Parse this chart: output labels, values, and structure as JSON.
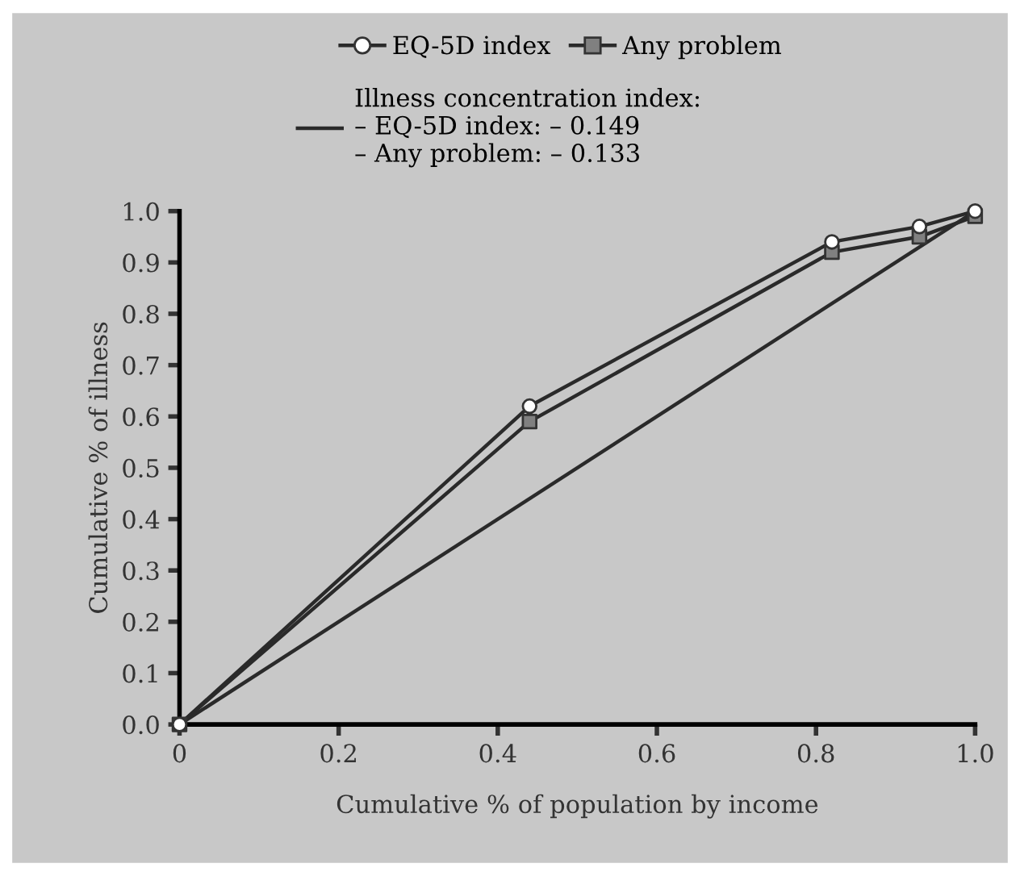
{
  "chart_data": {
    "type": "line",
    "xlabel": "Cumulative % of population by income",
    "ylabel": "Cumulative % of illness",
    "series": [
      {
        "name": "EQ-5D index",
        "color": "#2a2a2a",
        "marker": "circle",
        "colors": [
          "#ffffff",
          "#ffffff",
          "#ffffff",
          "#ffffff",
          "#ffffff"
        ],
        "x": [
          0,
          0.44,
          0.82,
          0.93,
          1.0
        ],
        "values": [
          0,
          0.62,
          0.94,
          0.97,
          1.0
        ]
      },
      {
        "name": "Any problem",
        "color": "#2a2a2a",
        "marker": "square",
        "colors": [
          "#808080",
          "#808080",
          "#808080",
          "#808080",
          "#808080"
        ],
        "x": [
          0,
          0.44,
          0.82,
          0.93,
          1.0
        ],
        "values": [
          0,
          0.59,
          0.92,
          0.95,
          0.99
        ]
      },
      {
        "name": "Illness concentration index:\n– EQ-5D index: – 0.149\n– Any problem: – 0.133",
        "color": "#2a2a2a",
        "marker": "none",
        "x": [
          0,
          1.0
        ],
        "values": [
          0,
          1.0
        ]
      }
    ],
    "xlim": [
      0,
      1.0
    ],
    "ylim": [
      0,
      1.0
    ],
    "xticks": [
      {
        "value": 0,
        "label": "0"
      },
      0.2,
      0.4,
      0.6,
      0.8,
      {
        "value": 1.0,
        "label": "1.0"
      }
    ],
    "yticks": [
      {
        "value": 0,
        "label": "0.0"
      },
      0.1,
      0.2,
      0.3,
      0.4,
      0.5,
      0.6,
      0.7,
      0.8,
      0.9,
      {
        "value": 1.0,
        "label": "1.0"
      }
    ],
    "grid": false,
    "legend": "top",
    "line_style": "solid"
  }
}
